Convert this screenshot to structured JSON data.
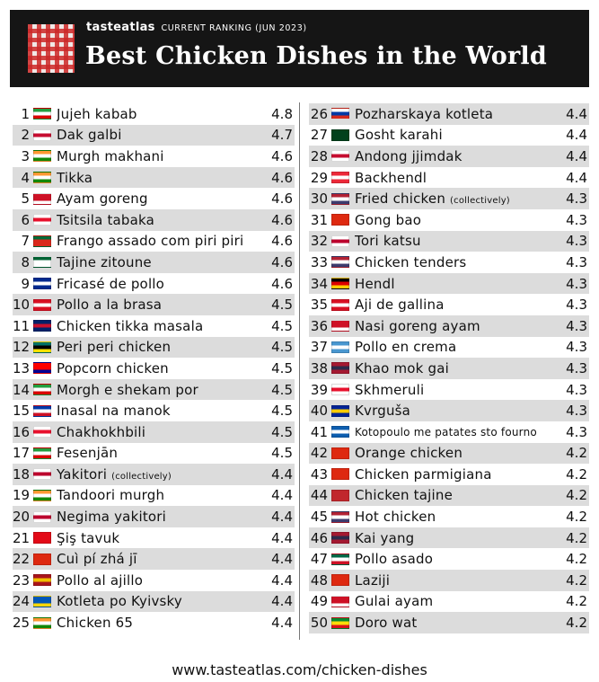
{
  "header": {
    "brand": "tasteatlas",
    "subtitle": "CURRENT RANKING (JUN 2023)",
    "title": "Best Chicken Dishes in the World"
  },
  "colors": {
    "header_bg": "#151515",
    "row_shade": "#dcdcdc",
    "logo_red": "#cc2828"
  },
  "ranking": [
    {
      "rank": "1",
      "name": "Jujeh kabab",
      "note": "",
      "rating": "4.8",
      "flag": [
        "#239f40",
        "#ffffff",
        "#da0000"
      ]
    },
    {
      "rank": "2",
      "name": "Dak galbi",
      "note": "",
      "rating": "4.7",
      "flag": [
        "#ffffff",
        "#c60c30",
        "#ffffff"
      ]
    },
    {
      "rank": "3",
      "name": "Murgh makhani",
      "note": "",
      "rating": "4.6",
      "flag": [
        "#ff9933",
        "#ffffff",
        "#138808"
      ]
    },
    {
      "rank": "4",
      "name": "Tikka",
      "note": "",
      "rating": "4.6",
      "flag": [
        "#ff9933",
        "#ffffff",
        "#138808"
      ]
    },
    {
      "rank": "5",
      "name": "Ayam goreng",
      "note": "",
      "rating": "4.6",
      "flag": [
        "#ce1126",
        "#ce1126",
        "#ffffff"
      ]
    },
    {
      "rank": "6",
      "name": "Tsitsila tabaka",
      "note": "",
      "rating": "4.6",
      "flag": [
        "#ffffff",
        "#e8112d",
        "#ffffff"
      ]
    },
    {
      "rank": "7",
      "name": "Frango assado com piri piri",
      "note": "",
      "rating": "4.6",
      "flag": [
        "#046a38",
        "#da291c",
        "#da291c"
      ]
    },
    {
      "rank": "8",
      "name": "Tajine zitoune",
      "note": "",
      "rating": "4.6",
      "flag": [
        "#006233",
        "#ffffff",
        "#ffffff"
      ]
    },
    {
      "rank": "9",
      "name": "Fricasé de pollo",
      "note": "",
      "rating": "4.6",
      "flag": [
        "#002a8f",
        "#ffffff",
        "#002a8f"
      ]
    },
    {
      "rank": "10",
      "name": "Pollo a la brasa",
      "note": "",
      "rating": "4.5",
      "flag": [
        "#d91023",
        "#ffffff",
        "#d91023"
      ]
    },
    {
      "rank": "11",
      "name": "Chicken tikka masala",
      "note": "",
      "rating": "4.5",
      "flag": [
        "#012169",
        "#c8102e",
        "#012169"
      ]
    },
    {
      "rank": "12",
      "name": "Peri peri chicken",
      "note": "",
      "rating": "4.5",
      "flag": [
        "#007168",
        "#000000",
        "#fce100"
      ]
    },
    {
      "rank": "13",
      "name": "Popcorn chicken",
      "note": "",
      "rating": "4.5",
      "flag": [
        "#fe0000",
        "#fe0000",
        "#000095"
      ]
    },
    {
      "rank": "14",
      "name": "Morgh e shekam por",
      "note": "",
      "rating": "4.5",
      "flag": [
        "#239f40",
        "#ffffff",
        "#da0000"
      ]
    },
    {
      "rank": "15",
      "name": "Inasal na manok",
      "note": "",
      "rating": "4.5",
      "flag": [
        "#0038a8",
        "#ffffff",
        "#ce1126"
      ]
    },
    {
      "rank": "16",
      "name": "Chakhokhbili",
      "note": "",
      "rating": "4.5",
      "flag": [
        "#ffffff",
        "#e8112d",
        "#ffffff"
      ]
    },
    {
      "rank": "17",
      "name": "Fesenjān",
      "note": "",
      "rating": "4.5",
      "flag": [
        "#239f40",
        "#ffffff",
        "#da0000"
      ]
    },
    {
      "rank": "18",
      "name": "Yakitori",
      "note": "(collectively)",
      "rating": "4.4",
      "flag": [
        "#ffffff",
        "#bc002d",
        "#ffffff"
      ]
    },
    {
      "rank": "19",
      "name": "Tandoori murgh",
      "note": "",
      "rating": "4.4",
      "flag": [
        "#ff9933",
        "#ffffff",
        "#138808"
      ]
    },
    {
      "rank": "20",
      "name": "Negima yakitori",
      "note": "",
      "rating": "4.4",
      "flag": [
        "#ffffff",
        "#bc002d",
        "#ffffff"
      ]
    },
    {
      "rank": "21",
      "name": "Şiş tavuk",
      "note": "",
      "rating": "4.4",
      "flag": [
        "#e30a17",
        "#e30a17",
        "#e30a17"
      ]
    },
    {
      "rank": "22",
      "name": "Cuì pí zhá jī",
      "note": "",
      "rating": "4.4",
      "flag": [
        "#de2910",
        "#de2910",
        "#de2910"
      ]
    },
    {
      "rank": "23",
      "name": "Pollo al ajillo",
      "note": "",
      "rating": "4.4",
      "flag": [
        "#aa151b",
        "#f1bf00",
        "#aa151b"
      ]
    },
    {
      "rank": "24",
      "name": "Kotleta po Kyivsky",
      "note": "",
      "rating": "4.4",
      "flag": [
        "#0057b7",
        "#0057b7",
        "#ffd700"
      ]
    },
    {
      "rank": "25",
      "name": "Chicken 65",
      "note": "",
      "rating": "4.4",
      "flag": [
        "#ff9933",
        "#ffffff",
        "#138808"
      ]
    },
    {
      "rank": "26",
      "name": "Pozharskaya kotleta",
      "note": "",
      "rating": "4.4",
      "flag": [
        "#ffffff",
        "#0039a6",
        "#d52b1e"
      ]
    },
    {
      "rank": "27",
      "name": "Gosht karahi",
      "note": "",
      "rating": "4.4",
      "flag": [
        "#01411c",
        "#01411c",
        "#01411c"
      ]
    },
    {
      "rank": "28",
      "name": "Andong jjimdak",
      "note": "",
      "rating": "4.4",
      "flag": [
        "#ffffff",
        "#c60c30",
        "#ffffff"
      ]
    },
    {
      "rank": "29",
      "name": "Backhendl",
      "note": "",
      "rating": "4.4",
      "flag": [
        "#ed2939",
        "#ffffff",
        "#ed2939"
      ]
    },
    {
      "rank": "30",
      "name": "Fried chicken",
      "note": "(collectively)",
      "rating": "4.3",
      "flag": [
        "#b22234",
        "#ffffff",
        "#3c3b6e"
      ]
    },
    {
      "rank": "31",
      "name": "Gong bao",
      "note": "",
      "rating": "4.3",
      "flag": [
        "#de2910",
        "#de2910",
        "#de2910"
      ]
    },
    {
      "rank": "32",
      "name": "Tori katsu",
      "note": "",
      "rating": "4.3",
      "flag": [
        "#ffffff",
        "#bc002d",
        "#ffffff"
      ]
    },
    {
      "rank": "33",
      "name": "Chicken tenders",
      "note": "",
      "rating": "4.3",
      "flag": [
        "#b22234",
        "#ffffff",
        "#3c3b6e"
      ]
    },
    {
      "rank": "34",
      "name": "Hendl",
      "note": "",
      "rating": "4.3",
      "flag": [
        "#000000",
        "#dd0000",
        "#ffce00"
      ]
    },
    {
      "rank": "35",
      "name": "Aji de gallina",
      "note": "",
      "rating": "4.3",
      "flag": [
        "#d91023",
        "#ffffff",
        "#d91023"
      ]
    },
    {
      "rank": "36",
      "name": "Nasi goreng ayam",
      "note": "",
      "rating": "4.3",
      "flag": [
        "#ce1126",
        "#ce1126",
        "#ffffff"
      ]
    },
    {
      "rank": "37",
      "name": "Pollo en crema",
      "note": "",
      "rating": "4.3",
      "flag": [
        "#4997d0",
        "#ffffff",
        "#4997d0"
      ]
    },
    {
      "rank": "38",
      "name": "Khao mok gai",
      "note": "",
      "rating": "4.3",
      "flag": [
        "#a51931",
        "#2d2a4a",
        "#a51931"
      ]
    },
    {
      "rank": "39",
      "name": "Skhmeruli",
      "note": "",
      "rating": "4.3",
      "flag": [
        "#ffffff",
        "#e8112d",
        "#ffffff"
      ]
    },
    {
      "rank": "40",
      "name": "Kvrguša",
      "note": "",
      "rating": "4.3",
      "flag": [
        "#002395",
        "#fecb00",
        "#002395"
      ]
    },
    {
      "rank": "41",
      "name": "Kotopoulo me patates sto fourno",
      "note": "",
      "rating": "4.3",
      "small": true,
      "flag": [
        "#0d5eaf",
        "#ffffff",
        "#0d5eaf"
      ]
    },
    {
      "rank": "42",
      "name": "Orange chicken",
      "note": "",
      "rating": "4.2",
      "flag": [
        "#de2910",
        "#de2910",
        "#de2910"
      ]
    },
    {
      "rank": "43",
      "name": "Chicken parmigiana",
      "note": "",
      "rating": "4.2",
      "flag": [
        "#de2910",
        "#de2910",
        "#de2910"
      ]
    },
    {
      "rank": "44",
      "name": "Chicken tajine",
      "note": "",
      "rating": "4.2",
      "flag": [
        "#c1272d",
        "#c1272d",
        "#c1272d"
      ]
    },
    {
      "rank": "45",
      "name": "Hot chicken",
      "note": "",
      "rating": "4.2",
      "flag": [
        "#b22234",
        "#ffffff",
        "#3c3b6e"
      ]
    },
    {
      "rank": "46",
      "name": "Kai yang",
      "note": "",
      "rating": "4.2",
      "flag": [
        "#a51931",
        "#2d2a4a",
        "#a51931"
      ]
    },
    {
      "rank": "47",
      "name": "Pollo asado",
      "note": "",
      "rating": "4.2",
      "flag": [
        "#006847",
        "#ffffff",
        "#ce1126"
      ]
    },
    {
      "rank": "48",
      "name": "Laziji",
      "note": "",
      "rating": "4.2",
      "flag": [
        "#de2910",
        "#de2910",
        "#de2910"
      ]
    },
    {
      "rank": "49",
      "name": "Gulai ayam",
      "note": "",
      "rating": "4.2",
      "flag": [
        "#ce1126",
        "#ce1126",
        "#ffffff"
      ]
    },
    {
      "rank": "50",
      "name": "Doro wat",
      "note": "",
      "rating": "4.2",
      "flag": [
        "#078930",
        "#fcdd09",
        "#da121a"
      ]
    }
  ],
  "footer": {
    "url": "www.tasteatlas.com/chicken-dishes"
  }
}
